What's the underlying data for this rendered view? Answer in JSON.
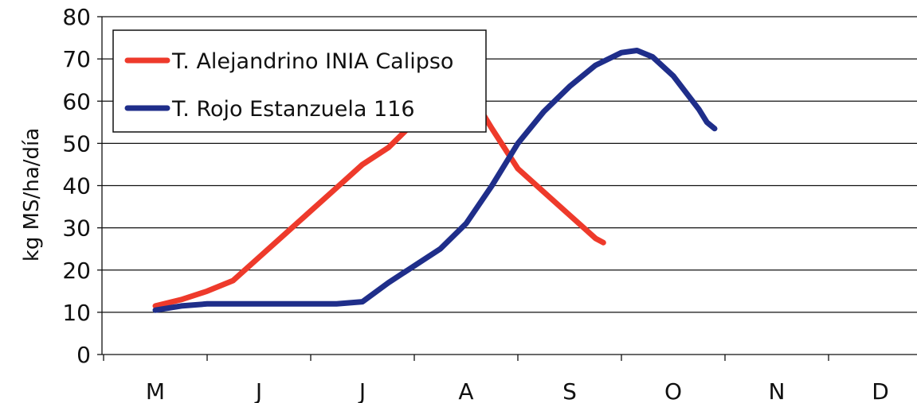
{
  "chart_data": {
    "type": "line",
    "ylabel": "kg MS/ha/día",
    "xlabel": "",
    "ylim": [
      0,
      80
    ],
    "yticks": [
      0,
      10,
      20,
      30,
      40,
      50,
      60,
      70,
      80
    ],
    "categories": [
      "M",
      "J",
      "J",
      "A",
      "S",
      "O",
      "N",
      "D"
    ],
    "grid": "horizontal",
    "legend": "top-left",
    "series": [
      {
        "name": "T. Alejandrino INIA Calipso",
        "color": "#ee3a2b",
        "points": [
          [
            0,
            11.5
          ],
          [
            0.5,
            13
          ],
          [
            1,
            15
          ],
          [
            1.5,
            17.5
          ],
          [
            2,
            23
          ],
          [
            2.5,
            28.5
          ],
          [
            3,
            34
          ],
          [
            3.5,
            39.5
          ],
          [
            4,
            45
          ],
          [
            4.5,
            49
          ],
          [
            5,
            55
          ],
          [
            5.5,
            60
          ],
          [
            5.75,
            62
          ],
          [
            6,
            61.5
          ],
          [
            6.25,
            58.5
          ],
          [
            6.5,
            53.5
          ],
          [
            7,
            44
          ],
          [
            7.5,
            38.5
          ],
          [
            8,
            33
          ],
          [
            8.5,
            27.5
          ],
          [
            8.65,
            26.5
          ]
        ]
      },
      {
        "name": "T. Rojo Estanzuela 116",
        "color": "#1f2e8a",
        "points": [
          [
            0,
            10.5
          ],
          [
            0.5,
            11.5
          ],
          [
            1,
            12
          ],
          [
            2,
            12
          ],
          [
            3,
            12
          ],
          [
            3.5,
            12
          ],
          [
            4,
            12.5
          ],
          [
            4.5,
            17
          ],
          [
            5,
            21
          ],
          [
            5.5,
            25
          ],
          [
            6,
            31
          ],
          [
            6.5,
            40
          ],
          [
            7,
            50
          ],
          [
            7.5,
            57.5
          ],
          [
            8,
            63.5
          ],
          [
            8.5,
            68.5
          ],
          [
            9,
            71.5
          ],
          [
            9.3,
            72
          ],
          [
            9.6,
            70.5
          ],
          [
            10,
            66
          ],
          [
            10.5,
            58
          ],
          [
            10.65,
            55
          ],
          [
            10.8,
            53.5
          ]
        ]
      }
    ]
  }
}
